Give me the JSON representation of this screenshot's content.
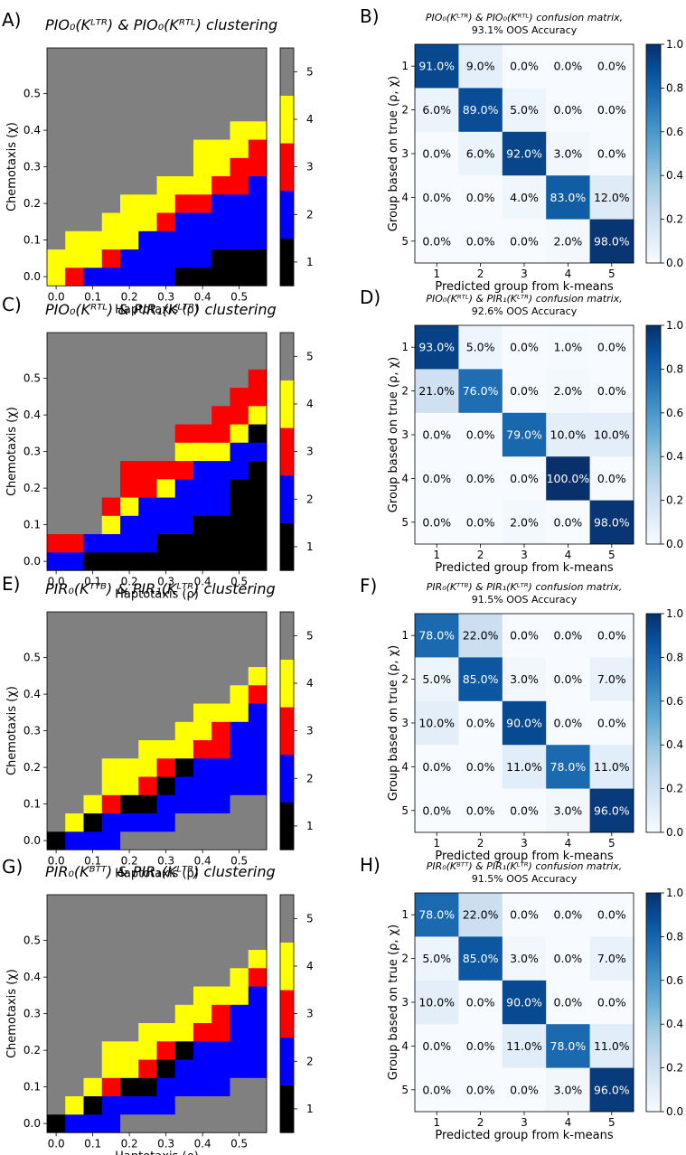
{
  "chart_data": [
    {
      "panel": "A)",
      "type": "heatmap",
      "title": "PIO₀(Kᴸᵀᴿ) & PIO₀(Kᴿᵀᴸ) clustering",
      "xlabel": "Haptotaxis (ρ)",
      "ylabel": "Chemotaxis (χ)",
      "x_ticks": [
        "0.0",
        "0.1",
        "0.2",
        "0.3",
        "0.4",
        "0.5"
      ],
      "y_ticks": [
        "0.0",
        "0.1",
        "0.2",
        "0.3",
        "0.4",
        "0.5"
      ],
      "colorbar_ticks": [
        "1",
        "2",
        "3",
        "4",
        "5"
      ],
      "colors": {
        "1": "#000000",
        "2": "#0000ff",
        "3": "#ff0000",
        "4": "#ffff00",
        "5": "#808080"
      },
      "rows": [
        [
          4,
          3,
          2,
          2,
          2,
          2,
          2,
          1,
          1,
          1,
          1,
          1
        ],
        [
          4,
          4,
          4,
          3,
          2,
          2,
          2,
          2,
          2,
          1,
          1,
          1
        ],
        [
          5,
          4,
          4,
          4,
          4,
          2,
          2,
          2,
          2,
          2,
          2,
          2
        ],
        [
          5,
          5,
          5,
          4,
          4,
          4,
          3,
          2,
          2,
          2,
          2,
          2
        ],
        [
          5,
          5,
          5,
          5,
          4,
          4,
          4,
          3,
          3,
          2,
          2,
          2
        ],
        [
          5,
          5,
          5,
          5,
          5,
          5,
          4,
          4,
          4,
          3,
          3,
          2
        ],
        [
          5,
          5,
          5,
          5,
          5,
          5,
          5,
          5,
          4,
          4,
          3,
          3
        ],
        [
          5,
          5,
          5,
          5,
          5,
          5,
          5,
          5,
          4,
          4,
          4,
          3
        ],
        [
          5,
          5,
          5,
          5,
          5,
          5,
          5,
          5,
          5,
          5,
          4,
          4
        ],
        [
          5,
          5,
          5,
          5,
          5,
          5,
          5,
          5,
          5,
          5,
          5,
          5
        ],
        [
          5,
          5,
          5,
          5,
          5,
          5,
          5,
          5,
          5,
          5,
          5,
          5
        ],
        [
          5,
          5,
          5,
          5,
          5,
          5,
          5,
          5,
          5,
          5,
          5,
          5
        ],
        [
          5,
          5,
          5,
          5,
          5,
          5,
          5,
          5,
          5,
          5,
          5,
          5
        ]
      ]
    },
    {
      "panel": "B)",
      "type": "heatmap",
      "title": "PIO₀(Kᴸᵀᴿ) & PIO₀(Kᴿᵀᴸ) confusion matrix,",
      "subtitle": "93.1% OOS Accuracy",
      "xlabel": "Predicted group from k-means",
      "ylabel": "Group based on true (ρ, χ)",
      "categories": [
        "1",
        "2",
        "3",
        "4",
        "5"
      ],
      "colorbar_ticks": [
        "0.0",
        "0.2",
        "0.4",
        "0.6",
        "0.8",
        "1.0"
      ],
      "values": [
        [
          91,
          9,
          0,
          0,
          0
        ],
        [
          6,
          89,
          5,
          0,
          0
        ],
        [
          0,
          6,
          92,
          3,
          0
        ],
        [
          0,
          0,
          4,
          83,
          12
        ],
        [
          0,
          0,
          0,
          2,
          98
        ]
      ]
    },
    {
      "panel": "C)",
      "type": "heatmap",
      "title": "PIO₀(Kᴿᵀᴸ) & PIR₁(Kᴸᵀᴿ) clustering",
      "xlabel": "Haptotaxis (ρ)",
      "ylabel": "Chemotaxis (χ)",
      "x_ticks": [
        "0.0",
        "0.1",
        "0.2",
        "0.3",
        "0.4",
        "0.5"
      ],
      "y_ticks": [
        "0.0",
        "0.1",
        "0.2",
        "0.3",
        "0.4",
        "0.5"
      ],
      "colorbar_ticks": [
        "1",
        "2",
        "3",
        "4",
        "5"
      ],
      "colors": {
        "1": "#000000",
        "2": "#0000ff",
        "3": "#ff0000",
        "4": "#ffff00",
        "5": "#808080"
      },
      "rows": [
        [
          2,
          2,
          1,
          1,
          1,
          1,
          1,
          1,
          1,
          1,
          1,
          1
        ],
        [
          3,
          3,
          2,
          2,
          2,
          2,
          1,
          1,
          1,
          1,
          1,
          1
        ],
        [
          5,
          5,
          5,
          4,
          2,
          2,
          2,
          2,
          1,
          1,
          1,
          1
        ],
        [
          5,
          5,
          5,
          3,
          4,
          2,
          2,
          2,
          2,
          2,
          1,
          1
        ],
        [
          5,
          5,
          5,
          5,
          3,
          3,
          4,
          2,
          2,
          2,
          1,
          1
        ],
        [
          5,
          5,
          5,
          5,
          3,
          3,
          3,
          3,
          2,
          2,
          2,
          1
        ],
        [
          5,
          5,
          5,
          5,
          5,
          5,
          5,
          4,
          4,
          4,
          2,
          2
        ],
        [
          5,
          5,
          5,
          5,
          5,
          5,
          5,
          3,
          3,
          3,
          4,
          1
        ],
        [
          5,
          5,
          5,
          5,
          5,
          5,
          5,
          5,
          5,
          3,
          3,
          4
        ],
        [
          5,
          5,
          5,
          5,
          5,
          5,
          5,
          5,
          5,
          5,
          3,
          3
        ],
        [
          5,
          5,
          5,
          5,
          5,
          5,
          5,
          5,
          5,
          5,
          5,
          3
        ],
        [
          5,
          5,
          5,
          5,
          5,
          5,
          5,
          5,
          5,
          5,
          5,
          5
        ],
        [
          5,
          5,
          5,
          5,
          5,
          5,
          5,
          5,
          5,
          5,
          5,
          5
        ]
      ]
    },
    {
      "panel": "D)",
      "type": "heatmap",
      "title": "PIO₀(Kᴿᵀᴸ) & PIR₁(Kᴸᵀᴿ) confusion matrix,",
      "subtitle": "92.6% OOS Accuracy",
      "xlabel": "Predicted group from k-means",
      "ylabel": "Group based on true (ρ, χ)",
      "categories": [
        "1",
        "2",
        "3",
        "4",
        "5"
      ],
      "colorbar_ticks": [
        "0.0",
        "0.2",
        "0.4",
        "0.6",
        "0.8",
        "1.0"
      ],
      "values": [
        [
          93,
          5,
          0,
          1,
          0
        ],
        [
          21,
          76,
          0,
          2,
          0
        ],
        [
          0,
          0,
          79,
          10,
          10
        ],
        [
          0,
          0,
          0,
          100,
          0
        ],
        [
          0,
          0,
          2,
          0,
          98
        ]
      ]
    },
    {
      "panel": "E)",
      "type": "heatmap",
      "title": "PIR₀(Kᵀᵀᴮ) & PIR₁(Kᴸᵀᴿ) clustering",
      "xlabel": "Haptotaxis (ρ)",
      "ylabel": "Chemotaxis (χ)",
      "x_ticks": [
        "0.0",
        "0.1",
        "0.2",
        "0.3",
        "0.4",
        "0.5"
      ],
      "y_ticks": [
        "0.0",
        "0.1",
        "0.2",
        "0.3",
        "0.4",
        "0.5"
      ],
      "colorbar_ticks": [
        "1",
        "2",
        "3",
        "4",
        "5"
      ],
      "colors": {
        "1": "#000000",
        "2": "#0000ff",
        "3": "#ff0000",
        "4": "#ffff00",
        "5": "#808080"
      },
      "rows": [
        [
          1,
          2,
          2,
          2,
          5,
          5,
          5,
          5,
          5,
          5,
          5,
          5
        ],
        [
          5,
          4,
          1,
          2,
          2,
          2,
          2,
          5,
          5,
          5,
          5,
          5
        ],
        [
          5,
          5,
          4,
          3,
          1,
          1,
          2,
          2,
          2,
          2,
          5,
          5
        ],
        [
          5,
          5,
          5,
          4,
          4,
          3,
          1,
          2,
          2,
          2,
          2,
          2
        ],
        [
          5,
          5,
          5,
          4,
          4,
          4,
          3,
          1,
          2,
          2,
          2,
          2
        ],
        [
          5,
          5,
          5,
          5,
          5,
          4,
          4,
          4,
          3,
          3,
          2,
          2
        ],
        [
          5,
          5,
          5,
          5,
          5,
          5,
          5,
          4,
          4,
          3,
          2,
          2
        ],
        [
          5,
          5,
          5,
          5,
          5,
          5,
          5,
          5,
          4,
          4,
          4,
          2
        ],
        [
          5,
          5,
          5,
          5,
          5,
          5,
          5,
          5,
          5,
          5,
          4,
          3
        ],
        [
          5,
          5,
          5,
          5,
          5,
          5,
          5,
          5,
          5,
          5,
          5,
          4
        ],
        [
          5,
          5,
          5,
          5,
          5,
          5,
          5,
          5,
          5,
          5,
          5,
          5
        ],
        [
          5,
          5,
          5,
          5,
          5,
          5,
          5,
          5,
          5,
          5,
          5,
          5
        ],
        [
          5,
          5,
          5,
          5,
          5,
          5,
          5,
          5,
          5,
          5,
          5,
          5
        ]
      ]
    },
    {
      "panel": "F)",
      "type": "heatmap",
      "title": "PIR₀(Kᵀᵀᴮ) & PIR₁(Kᴸᵀᴿ) confusion matrix,",
      "subtitle": "91.5% OOS Accuracy",
      "xlabel": "Predicted group from k-means",
      "ylabel": "Group based on true (ρ, χ)",
      "categories": [
        "1",
        "2",
        "3",
        "4",
        "5"
      ],
      "colorbar_ticks": [
        "0.0",
        "0.2",
        "0.4",
        "0.6",
        "0.8",
        "1.0"
      ],
      "values": [
        [
          78,
          22,
          0,
          0,
          0
        ],
        [
          5,
          85,
          3,
          0,
          7
        ],
        [
          10,
          0,
          90,
          0,
          0
        ],
        [
          0,
          0,
          11,
          78,
          11
        ],
        [
          0,
          0,
          0,
          3,
          96
        ]
      ]
    },
    {
      "panel": "G)",
      "type": "heatmap",
      "title": "PIR₀(Kᴮᵀᵀ) & PIR₁(Kᴸᵀᴿ) clustering",
      "xlabel": "Haptotaxis (ρ)",
      "ylabel": "Chemotaxis (χ)",
      "x_ticks": [
        "0.0",
        "0.1",
        "0.2",
        "0.3",
        "0.4",
        "0.5"
      ],
      "y_ticks": [
        "0.0",
        "0.1",
        "0.2",
        "0.3",
        "0.4",
        "0.5"
      ],
      "colorbar_ticks": [
        "1",
        "2",
        "3",
        "4",
        "5"
      ],
      "colors": {
        "1": "#000000",
        "2": "#0000ff",
        "3": "#ff0000",
        "4": "#ffff00",
        "5": "#808080"
      },
      "rows": [
        [
          1,
          2,
          2,
          2,
          5,
          5,
          5,
          5,
          5,
          5,
          5,
          5
        ],
        [
          5,
          4,
          1,
          2,
          2,
          2,
          2,
          5,
          5,
          5,
          5,
          5
        ],
        [
          5,
          5,
          4,
          3,
          1,
          1,
          2,
          2,
          2,
          2,
          5,
          5
        ],
        [
          5,
          5,
          5,
          4,
          4,
          3,
          1,
          2,
          2,
          2,
          2,
          2
        ],
        [
          5,
          5,
          5,
          4,
          4,
          4,
          3,
          1,
          2,
          2,
          2,
          2
        ],
        [
          5,
          5,
          5,
          5,
          5,
          4,
          4,
          4,
          3,
          3,
          2,
          2
        ],
        [
          5,
          5,
          5,
          5,
          5,
          5,
          5,
          4,
          4,
          3,
          2,
          2
        ],
        [
          5,
          5,
          5,
          5,
          5,
          5,
          5,
          5,
          4,
          4,
          4,
          2
        ],
        [
          5,
          5,
          5,
          5,
          5,
          5,
          5,
          5,
          5,
          5,
          4,
          3
        ],
        [
          5,
          5,
          5,
          5,
          5,
          5,
          5,
          5,
          5,
          5,
          5,
          4
        ],
        [
          5,
          5,
          5,
          5,
          5,
          5,
          5,
          5,
          5,
          5,
          5,
          5
        ],
        [
          5,
          5,
          5,
          5,
          5,
          5,
          5,
          5,
          5,
          5,
          5,
          5
        ],
        [
          5,
          5,
          5,
          5,
          5,
          5,
          5,
          5,
          5,
          5,
          5,
          5
        ]
      ]
    },
    {
      "panel": "H)",
      "type": "heatmap",
      "title": "PIR₀(Kᴮᵀᵀ) & PIR₁(Kᴸᵀᴿ) confusion matrix,",
      "subtitle": "91.5% OOS Accuracy",
      "xlabel": "Predicted group from k-means",
      "ylabel": "Group based on true (ρ, χ)",
      "categories": [
        "1",
        "2",
        "3",
        "4",
        "5"
      ],
      "colorbar_ticks": [
        "0.0",
        "0.2",
        "0.4",
        "0.6",
        "0.8",
        "1.0"
      ],
      "values": [
        [
          78,
          22,
          0,
          0,
          0
        ],
        [
          5,
          85,
          3,
          0,
          7
        ],
        [
          10,
          0,
          90,
          0,
          0
        ],
        [
          0,
          0,
          11,
          78,
          11
        ],
        [
          0,
          0,
          0,
          3,
          96
        ]
      ]
    }
  ]
}
